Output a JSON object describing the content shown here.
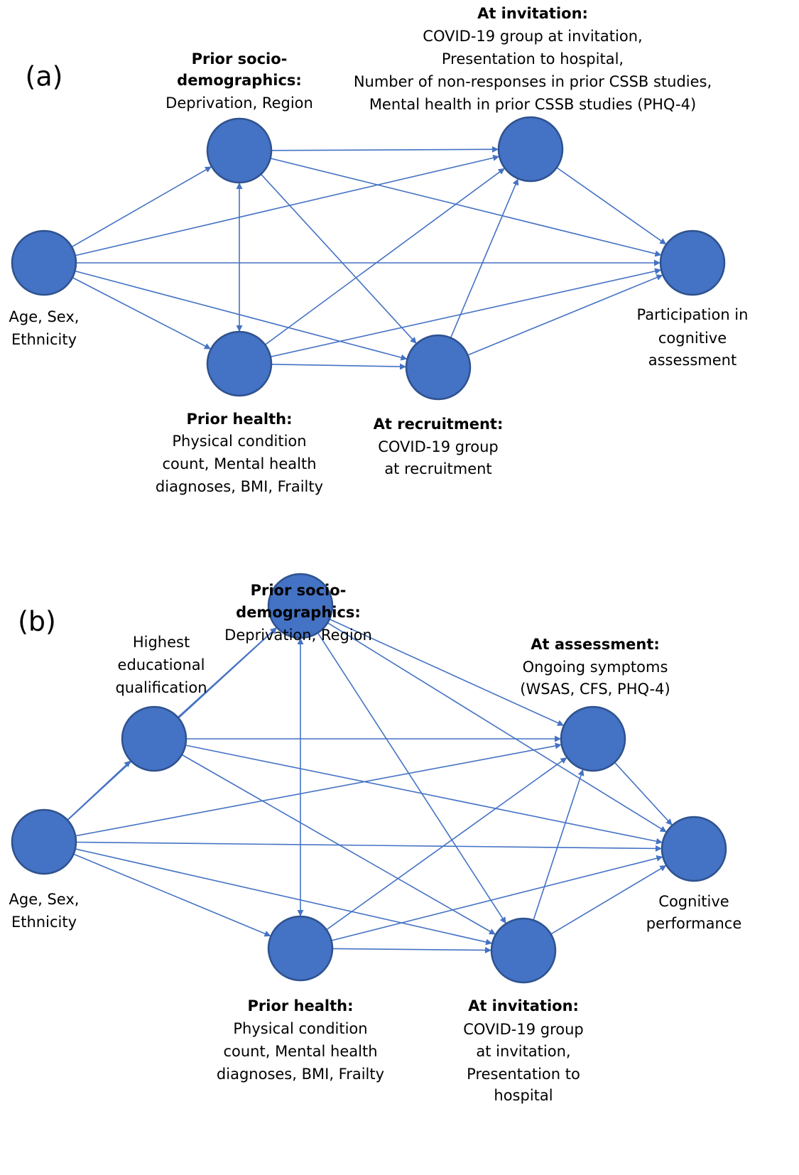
{
  "panels": [
    {
      "label": "(a)",
      "nodes": [
        {
          "text": [
            "Age, Sex,",
            "Ethnicity"
          ]
        },
        {
          "heading": [
            "Prior socio-",
            "demographics:"
          ],
          "text": [
            "Deprivation, Region"
          ]
        },
        {
          "heading": [
            "Prior health:"
          ],
          "text": [
            "Physical condition",
            "count, Mental health",
            "diagnoses, BMI, Frailty"
          ]
        },
        {
          "heading": [
            "At recruitment:"
          ],
          "text": [
            "COVID-19 group",
            "at recruitment"
          ]
        },
        {
          "heading": [
            "At invitation:"
          ],
          "text": [
            "COVID-19 group at invitation,",
            "Presentation to hospital,",
            "Number of non-responses in prior CSSB studies,",
            "Mental health in prior CSSB studies (PHQ-4)"
          ]
        },
        {
          "text": [
            "Participation in",
            "cognitive",
            "assessment"
          ]
        }
      ]
    },
    {
      "label": "(b)",
      "nodes": [
        {
          "text": [
            "Age, Sex,",
            "Ethnicity"
          ]
        },
        {
          "text": [
            "Highest",
            "educational",
            "qualification"
          ]
        },
        {
          "heading": [
            "Prior socio-",
            "demographics:"
          ],
          "text": [
            "Deprivation, Region"
          ]
        },
        {
          "heading": [
            "Prior health:"
          ],
          "text": [
            "Physical condition",
            "count, Mental health",
            "diagnoses, BMI, Frailty"
          ]
        },
        {
          "heading": [
            "At invitation:"
          ],
          "text": [
            "COVID-19 group",
            "at invitation,",
            "Presentation to",
            "hospital"
          ]
        },
        {
          "heading": [
            "At assessment:"
          ],
          "text": [
            "Ongoing symptoms",
            "(WSAS, CFS, PHQ-4)"
          ]
        },
        {
          "text": [
            "Cognitive",
            "performance"
          ]
        }
      ]
    }
  ]
}
